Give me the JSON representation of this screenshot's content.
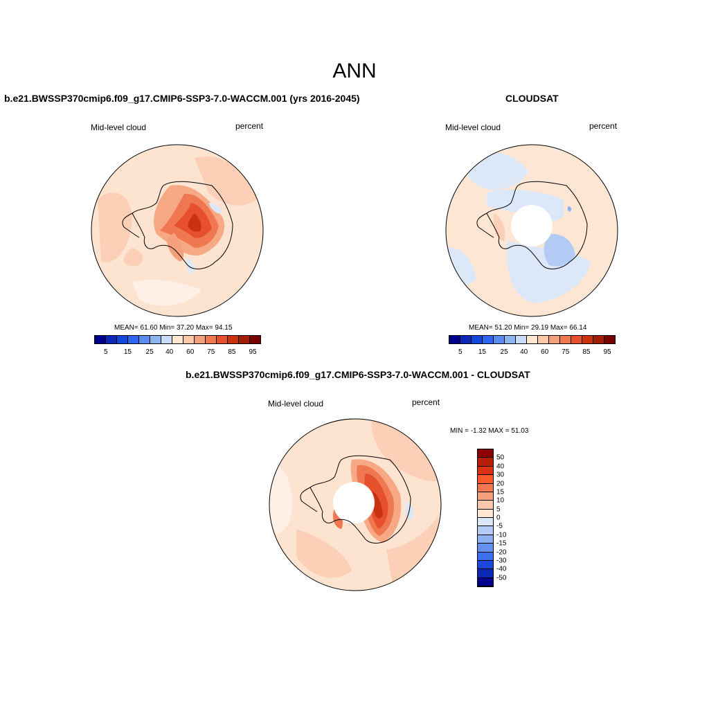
{
  "main_title": "ANN",
  "panel1": {
    "title": "b.e21.BWSSP370cmip6.f09_g17.CMIP6-SSP3-7.0-WACCM.001 (yrs 2016-2045)",
    "left_label": "Mid-level cloud",
    "right_label": "percent",
    "stats": "MEAN=  61.60   Min=  37.20   Max=  94.15"
  },
  "panel2": {
    "title": "CLOUDSAT",
    "left_label": "Mid-level cloud",
    "right_label": "percent",
    "stats": "MEAN=  51.20   Min=  29.19   Max=  66.14"
  },
  "panel3": {
    "title": "b.e21.BWSSP370cmip6.f09_g17.CMIP6-SSP3-7.0-WACCM.001 - CLOUDSAT",
    "left_label": "Mid-level cloud",
    "right_label": "percent",
    "stats": "MIN =  -1.32 MAX =  51.03"
  },
  "colorbar_abs": {
    "colors": [
      "#00008b",
      "#0a28b4",
      "#1446dc",
      "#2d64f0",
      "#5a8cf0",
      "#8cb4f0",
      "#c8dcf8",
      "#ffe6d2",
      "#fcc8aa",
      "#f5a07d",
      "#f07850",
      "#e6502d",
      "#c8320f",
      "#a01e05",
      "#780000"
    ],
    "labels": [
      "5",
      "15",
      "25",
      "40",
      "60",
      "75",
      "85",
      "95"
    ]
  },
  "colorbar_diff": {
    "colors": [
      "#8b0000",
      "#b41e0a",
      "#dc3214",
      "#fa5a28",
      "#f57850",
      "#f5a07d",
      "#fac8aa",
      "#ffe6d2",
      "#dce8f8",
      "#b4ccf5",
      "#8cb0f0",
      "#6490f0",
      "#3c6ef0",
      "#1e46dc",
      "#0a28b4",
      "#00008b"
    ],
    "labels": [
      "50",
      "40",
      "30",
      "20",
      "15",
      "10",
      "5",
      "0",
      "-5",
      "-10",
      "-15",
      "-20",
      "-30",
      "-40",
      "-50"
    ]
  }
}
